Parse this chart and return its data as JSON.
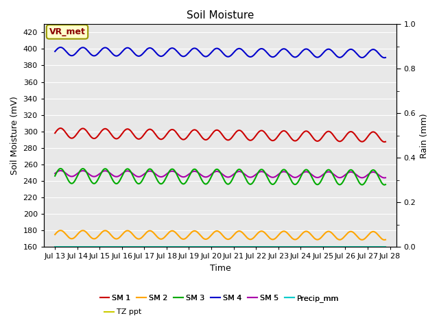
{
  "title": "Soil Moisture",
  "xlabel": "Time",
  "ylabel_left": "Soil Moisture (mV)",
  "ylabel_right": "Rain (mm)",
  "xlim_days": [
    12.5,
    28.3
  ],
  "ylim_left": [
    160,
    430
  ],
  "ylim_right": [
    0.0,
    1.0
  ],
  "yticks_left": [
    160,
    180,
    200,
    220,
    240,
    260,
    280,
    300,
    320,
    340,
    360,
    380,
    400,
    420
  ],
  "yticks_right": [
    0.0,
    0.2,
    0.4,
    0.6,
    0.8,
    1.0
  ],
  "xtick_labels": [
    "Jul 13",
    "Jul 14",
    "Jul 15",
    "Jul 16",
    "Jul 17",
    "Jul 18",
    "Jul 19",
    "Jul 20",
    "Jul 21",
    "Jul 22",
    "Jul 23",
    "Jul 24",
    "Jul 25",
    "Jul 26",
    "Jul 27",
    "Jul 28"
  ],
  "xtick_positions": [
    13,
    14,
    15,
    16,
    17,
    18,
    19,
    20,
    21,
    22,
    23,
    24,
    25,
    26,
    27,
    28
  ],
  "background_color": "#e8e8e8",
  "grid_color": "#ffffff",
  "annotation_text": "VR_met",
  "annotation_bg": "#ffffcc",
  "annotation_border": "#999900",
  "annotation_text_color": "#8b0000",
  "sm1_color": "#cc0000",
  "sm2_color": "#ffa500",
  "sm3_color": "#00aa00",
  "sm4_color": "#0000cc",
  "sm5_color": "#aa00aa",
  "precip_color": "#00cccc",
  "tz_color": "#cccc00",
  "sm1_base": 298,
  "sm1_amp": 6,
  "sm1_period": 1.0,
  "sm1_trend": -0.32,
  "sm2_base": 175,
  "sm2_amp": 5,
  "sm2_period": 1.0,
  "sm2_trend": -0.1,
  "sm3_base": 246,
  "sm3_amp": 9,
  "sm3_period": 1.0,
  "sm3_trend": -0.12,
  "sm4_base": 397,
  "sm4_amp": 5,
  "sm4_period": 1.0,
  "sm4_trend": -0.18,
  "sm5_base": 249,
  "sm5_amp": 3.5,
  "sm5_period": 1.0,
  "sm5_trend": -0.12,
  "linewidth": 1.5
}
